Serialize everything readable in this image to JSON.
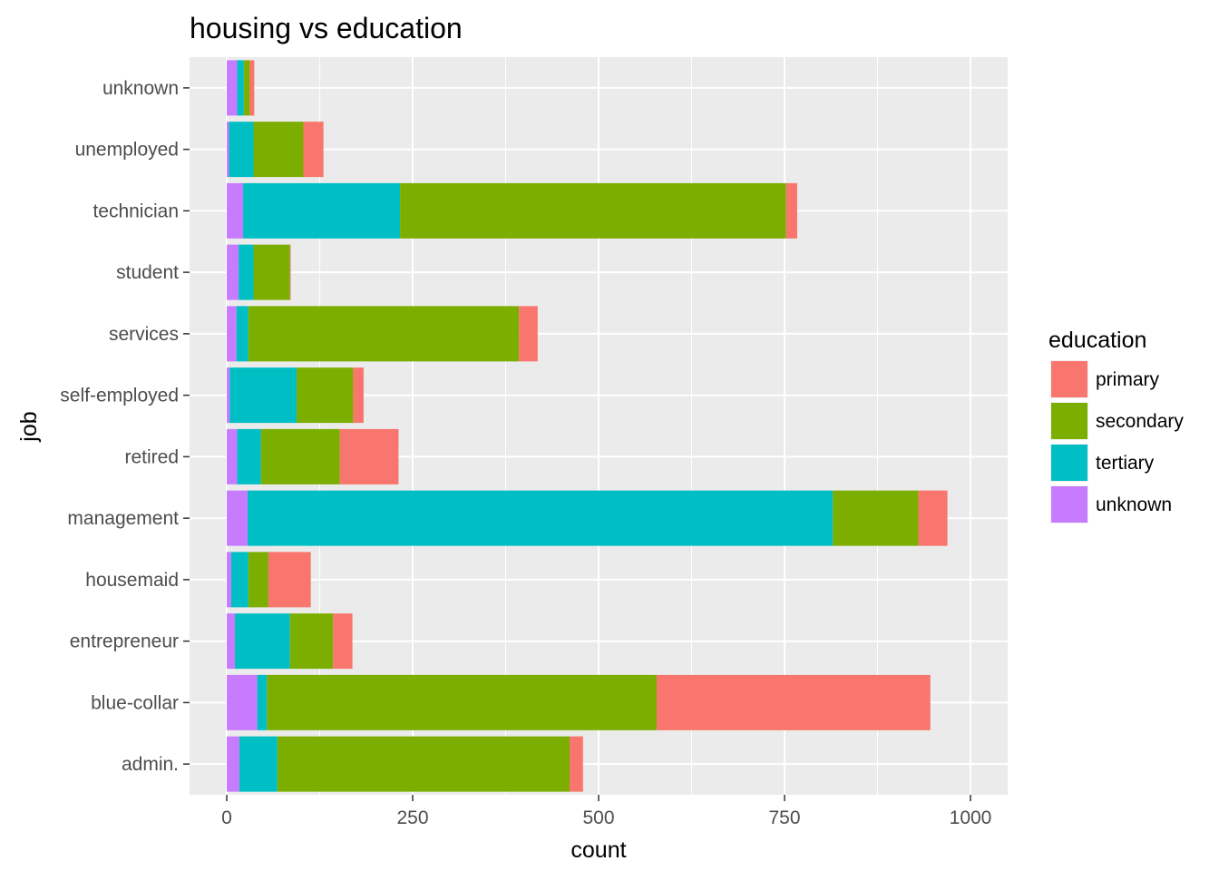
{
  "chart_data": {
    "type": "bar",
    "orientation": "horizontal",
    "stacked": true,
    "title": "housing vs education",
    "xlabel": "count",
    "ylabel": "job",
    "xlim": [
      0,
      1000
    ],
    "x_ticks": [
      0,
      250,
      500,
      750,
      1000
    ],
    "grid": true,
    "legend_position": "right",
    "legend_title": "education",
    "categories": [
      "admin.",
      "blue-collar",
      "entrepreneur",
      "housemaid",
      "management",
      "retired",
      "self-employed",
      "services",
      "student",
      "technician",
      "unemployed",
      "unknown"
    ],
    "stack_order": [
      "unknown",
      "tertiary",
      "secondary",
      "primary"
    ],
    "series": [
      {
        "name": "primary",
        "color": "#F8766D",
        "values": [
          18,
          368,
          26,
          57,
          39,
          79,
          14,
          25,
          1,
          15,
          27,
          6
        ]
      },
      {
        "name": "secondary",
        "color": "#7CAE00",
        "values": [
          393,
          524,
          58,
          27,
          115,
          106,
          76,
          364,
          49,
          519,
          67,
          8
        ]
      },
      {
        "name": "tertiary",
        "color": "#00BFC4",
        "values": [
          51,
          13,
          74,
          23,
          787,
          32,
          90,
          16,
          20,
          211,
          33,
          9
        ]
      },
      {
        "name": "unknown",
        "color": "#C77CFF",
        "values": [
          17,
          41,
          11,
          6,
          28,
          14,
          4,
          13,
          16,
          22,
          3,
          14
        ]
      }
    ]
  }
}
